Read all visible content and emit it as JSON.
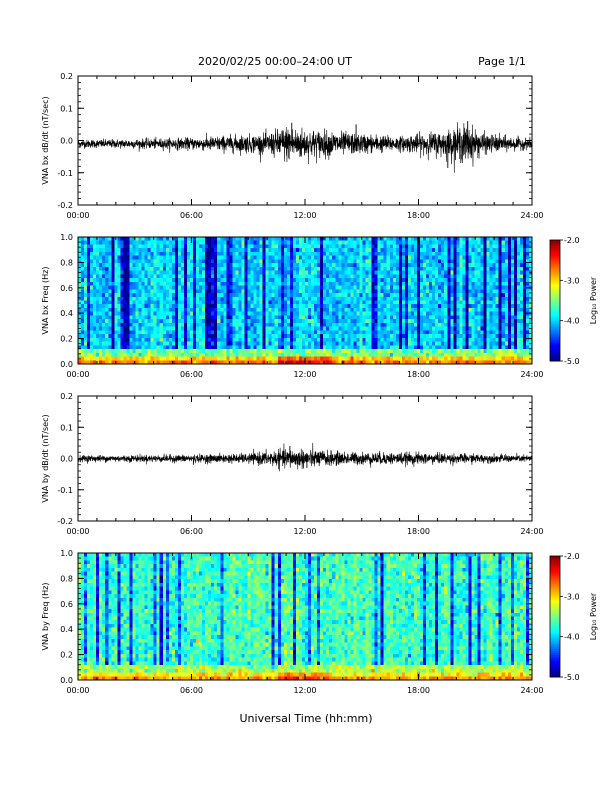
{
  "header": {
    "title": "2020/02/25  00:00–24:00 UT",
    "page": "Page 1/1"
  },
  "xlabel": "Universal Time (hh:mm)",
  "chart_data": [
    {
      "type": "line",
      "ylabel": "VNA bx dB/dt (nT/sec)",
      "x_range_hours": [
        0,
        24
      ],
      "xticks": [
        "00:00",
        "06:00",
        "12:00",
        "18:00",
        "24:00"
      ],
      "ylim": [
        -0.2,
        0.2
      ],
      "yticks": [
        "0.2",
        "0.1",
        "0.0",
        "-0.1",
        "-0.2"
      ],
      "baseline": -0.01,
      "envelope": [
        {
          "t": 0,
          "amp": 0.012
        },
        {
          "t": 3,
          "amp": 0.014
        },
        {
          "t": 6,
          "amp": 0.018
        },
        {
          "t": 8,
          "amp": 0.025
        },
        {
          "t": 10,
          "amp": 0.03
        },
        {
          "t": 11,
          "amp": 0.055
        },
        {
          "t": 12,
          "amp": 0.045
        },
        {
          "t": 14,
          "amp": 0.035
        },
        {
          "t": 15,
          "amp": 0.03
        },
        {
          "t": 17,
          "amp": 0.022
        },
        {
          "t": 19.5,
          "amp": 0.04
        },
        {
          "t": 20.5,
          "amp": 0.06
        },
        {
          "t": 21.5,
          "amp": 0.03
        },
        {
          "t": 24,
          "amp": 0.014
        }
      ],
      "spikes": [
        {
          "t": 19.55,
          "v": -0.085
        },
        {
          "t": 20.6,
          "v": 0.06
        },
        {
          "t": 11.3,
          "v": 0.055
        },
        {
          "t": 14.7,
          "v": 0.05
        },
        {
          "t": 11.8,
          "v": -0.05
        }
      ]
    },
    {
      "type": "heatmap",
      "ylabel": "VNA bx Freq (Hz)",
      "x_range_hours": [
        0,
        24
      ],
      "xticks": [
        "00:00",
        "06:00",
        "12:00",
        "18:00",
        "24:00"
      ],
      "ylim": [
        0,
        1.0
      ],
      "yticks": [
        "1.0",
        "0.8",
        "0.6",
        "0.4",
        "0.2",
        "0.0"
      ],
      "colorbar": {
        "label": "Log₁₀ Power",
        "range": [
          -5.0,
          -2.0
        ],
        "ticks": [
          "-2.0",
          "-3.0",
          "-4.0",
          "-5.0"
        ]
      },
      "base_level": -4.0,
      "low_freq_level": -3.0,
      "enhanced_hours": [
        10.5,
        13.5
      ]
    },
    {
      "type": "line",
      "ylabel": "VNA by dB/dt (nT/sec)",
      "x_range_hours": [
        0,
        24
      ],
      "xticks": [
        "00:00",
        "06:00",
        "12:00",
        "18:00",
        "24:00"
      ],
      "ylim": [
        -0.2,
        0.2
      ],
      "yticks": [
        "0.2",
        "0.1",
        "0.0",
        "-0.1",
        "-0.2"
      ],
      "baseline": 0.0,
      "envelope": [
        {
          "t": 0,
          "amp": 0.01
        },
        {
          "t": 6,
          "amp": 0.012
        },
        {
          "t": 9,
          "amp": 0.015
        },
        {
          "t": 11,
          "amp": 0.03
        },
        {
          "t": 12,
          "amp": 0.03
        },
        {
          "t": 14,
          "amp": 0.02
        },
        {
          "t": 18,
          "amp": 0.018
        },
        {
          "t": 24,
          "amp": 0.01
        }
      ],
      "spikes": [
        {
          "t": 11.2,
          "v": 0.04
        },
        {
          "t": 12.1,
          "v": -0.03
        },
        {
          "t": 6.1,
          "v": -0.02
        }
      ]
    },
    {
      "type": "heatmap",
      "ylabel": "VNA by Freq (Hz)",
      "x_range_hours": [
        0,
        24
      ],
      "xticks": [
        "00:00",
        "06:00",
        "12:00",
        "18:00",
        "24:00"
      ],
      "ylim": [
        0,
        1.0
      ],
      "yticks": [
        "1.0",
        "0.8",
        "0.6",
        "0.4",
        "0.2",
        "0.0"
      ],
      "colorbar": {
        "label": "Log₁₀ Power",
        "range": [
          -5.0,
          -2.0
        ],
        "ticks": [
          "-2.0",
          "-3.0",
          "-4.0",
          "-5.0"
        ]
      },
      "base_level": -3.7,
      "low_freq_level": -3.1,
      "enhanced_hours": [
        10.5,
        13.5
      ]
    }
  ]
}
